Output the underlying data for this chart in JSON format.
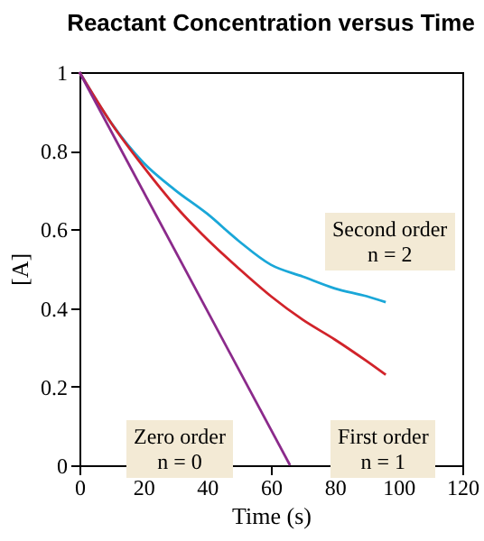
{
  "chart_data": {
    "type": "line",
    "title": "Reactant Concentration versus Time",
    "xlabel": "Time (s)",
    "ylabel": "[A]",
    "xlim": [
      0,
      120
    ],
    "xticks": [
      0,
      20,
      40,
      60,
      80,
      100,
      120
    ],
    "ylim": [
      0,
      1
    ],
    "yticks": [
      0,
      0.2,
      0.4,
      0.6,
      0.8,
      1
    ],
    "grid": false,
    "legend": false,
    "line_style": "solid",
    "series": [
      {
        "color": "#1aa7d8",
        "x": [
          0,
          10,
          20,
          30,
          40,
          50,
          60,
          70,
          80,
          90,
          96
        ],
        "values": [
          1,
          0.87,
          0.77,
          0.7,
          0.64,
          0.57,
          0.51,
          0.48,
          0.45,
          0.43,
          0.415
        ]
      },
      {
        "color": "#d1232a",
        "x": [
          0,
          10,
          20,
          30,
          40,
          50,
          60,
          70,
          80,
          90,
          96
        ],
        "values": [
          1,
          0.87,
          0.76,
          0.66,
          0.575,
          0.5,
          0.43,
          0.37,
          0.32,
          0.265,
          0.23
        ]
      },
      {
        "color": "#8b2a8b",
        "x": [
          0,
          66
        ],
        "values": [
          1,
          0
        ]
      }
    ],
    "annotations": [
      "Second order\nn = 2",
      "First order\nn = 1",
      "Zero order\nn = 0"
    ]
  }
}
